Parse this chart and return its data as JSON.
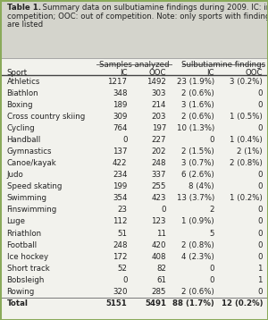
{
  "title_bold": "Table 1.",
  "title_rest_line1": "   Summary data on sulbutiamine findings during 2009. IC: in-",
  "title_rest_line2": "competition; OOC: out of competition. Note: only sports with findings",
  "title_rest_line3": "are listed",
  "col_headers_top": [
    "Samples analyzed",
    "Sulbutiamine findings"
  ],
  "col_headers_sub": [
    "Sport",
    "IC",
    "OOC",
    "IC",
    "OOC"
  ],
  "rows": [
    [
      "Athletics",
      "1217",
      "1492",
      "23 (1.9%)",
      "3 (0.2%)"
    ],
    [
      "Biathlon",
      "348",
      "303",
      "2 (0.6%)",
      "0"
    ],
    [
      "Boxing",
      "189",
      "214",
      "3 (1.6%)",
      "0"
    ],
    [
      "Cross country skiing",
      "309",
      "203",
      "2 (0.6%)",
      "1 (0.5%)"
    ],
    [
      "Cycling",
      "764",
      "197",
      "10 (1.3%)",
      "0"
    ],
    [
      "Handball",
      "0",
      "227",
      "0",
      "1 (0.4%)"
    ],
    [
      "Gymnastics",
      "137",
      "202",
      "2 (1.5%)",
      "2 (1%)"
    ],
    [
      "Canoe/kayak",
      "422",
      "248",
      "3 (0.7%)",
      "2 (0.8%)"
    ],
    [
      "Judo",
      "234",
      "337",
      "6 (2.6%)",
      "0"
    ],
    [
      "Speed skating",
      "199",
      "255",
      "8 (4%)",
      "0"
    ],
    [
      "Swimming",
      "354",
      "423",
      "13 (3.7%)",
      "1 (0.2%)"
    ],
    [
      "Finswimming",
      "23",
      "0",
      "2",
      "0"
    ],
    [
      "Luge",
      "112",
      "123",
      "1 (0.9%)",
      "0"
    ],
    [
      "Rriathlon",
      "51",
      "11",
      "5",
      "0"
    ],
    [
      "Football",
      "248",
      "420",
      "2 (0.8%)",
      "0"
    ],
    [
      "Ice hockey",
      "172",
      "408",
      "4 (2.3%)",
      "0"
    ],
    [
      "Short track",
      "52",
      "82",
      "0",
      "1"
    ],
    [
      "Bobsleigh",
      "0",
      "61",
      "0",
      "1"
    ],
    [
      "Rowing",
      "320",
      "285",
      "2 (0.6%)",
      "0"
    ]
  ],
  "total_row": [
    "Total",
    "5151",
    "5491",
    "88 (1.7%)",
    "12 (0.2%)"
  ],
  "bg_color": "#f2f2ed",
  "header_bg": "#d4d4cc",
  "border_color": "#8aaa5a",
  "text_color": "#222222",
  "font_size": 6.2,
  "title_font_size": 6.2
}
